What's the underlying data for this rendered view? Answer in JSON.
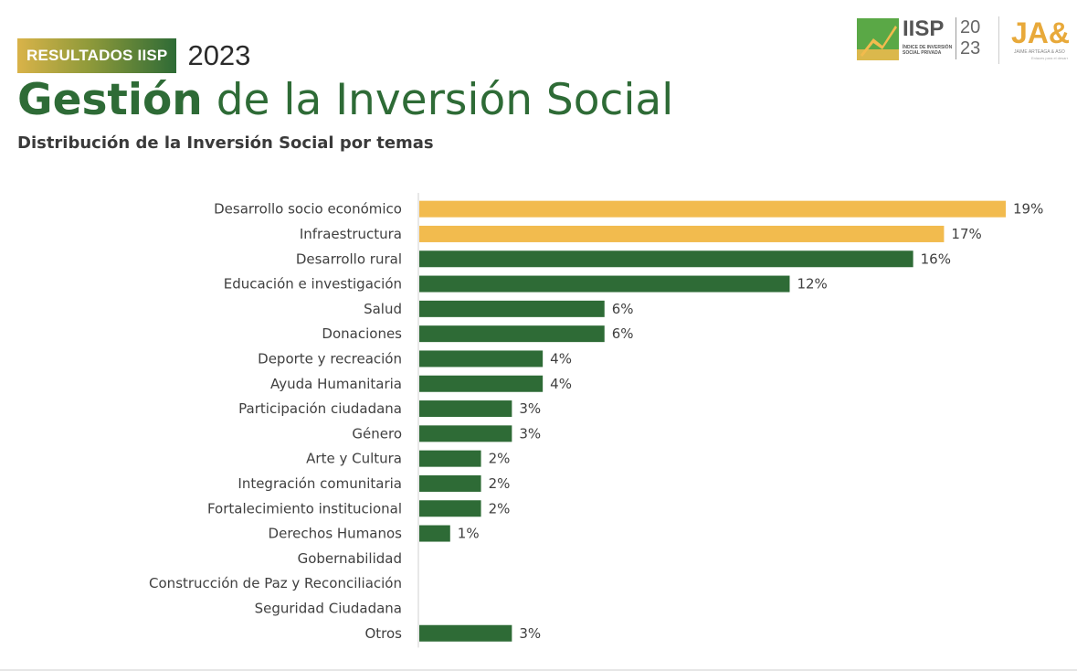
{
  "header": {
    "badge_label": "RESULTADOS IISP",
    "badge_year": "2023",
    "title_bold": "Gestión",
    "title_rest": " de la Inversión Social",
    "subtitle": "Distribución de la Inversión Social por temas"
  },
  "logos": {
    "iisp_word": "IISP",
    "iisp_sub": "ÍNDICE DE INVERSIÓN SOCIAL PRIVADA",
    "iisp_year_top": "20",
    "iisp_year_bottom": "23",
    "ja_mark": "JA&",
    "ja_line1": "JAIME ARTEAGA & ASO",
    "ja_line2": "Enlaces para el desarr"
  },
  "colors": {
    "highlight": "#f2bb4e",
    "primary": "#2e6b36",
    "title_green": "#2e6b36"
  },
  "chart_data": {
    "type": "bar",
    "orientation": "horizontal",
    "categories": [
      "Desarrollo socio económico",
      "Infraestructura",
      "Desarrollo rural",
      "Educación e investigación",
      "Salud",
      "Donaciones",
      "Deporte y recreación",
      "Ayuda Humanitaria",
      "Participación ciudadana",
      "Género",
      "Arte y Cultura",
      "Integración comunitaria",
      "Fortalecimiento institucional",
      "Derechos Humanos",
      "Gobernabilidad",
      "Construcción de Paz y Reconciliación",
      "Seguridad Ciudadana",
      "Otros"
    ],
    "values": [
      19,
      17,
      16,
      12,
      6,
      6,
      4,
      4,
      3,
      3,
      2,
      2,
      2,
      1,
      0,
      0,
      0,
      3
    ],
    "value_labels": [
      "19%",
      "17%",
      "16%",
      "12%",
      "6%",
      "6%",
      "4%",
      "4%",
      "3%",
      "3%",
      "2%",
      "2%",
      "2%",
      "1%",
      "",
      "",
      "",
      "3%"
    ],
    "highlighted_count": 2,
    "unit": "%",
    "xlim": [
      0,
      19
    ],
    "grid": false,
    "legend": "none"
  }
}
